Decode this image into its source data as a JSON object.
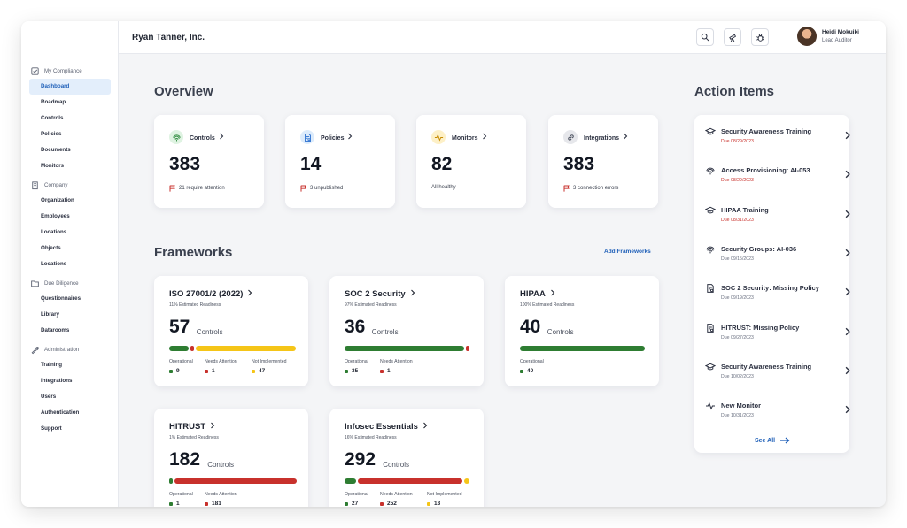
{
  "header": {
    "company": "Ryan Tanner, Inc.",
    "user": {
      "name": "Heidi Mokuiki",
      "role": "Lead Auditor"
    }
  },
  "sidebar": {
    "sections": [
      {
        "label": "My Compliance",
        "icon": "checkbox-icon",
        "items": [
          "Dashboard",
          "Roadmap",
          "Controls",
          "Policies",
          "Documents",
          "Monitors"
        ]
      },
      {
        "label": "Company",
        "icon": "building-icon",
        "items": [
          "Organization",
          "Employees",
          "Locations",
          "Objects",
          "Locations"
        ]
      },
      {
        "label": "Due Diligence",
        "icon": "folder-icon",
        "items": [
          "Questionnaires",
          "Library",
          "Datarooms"
        ]
      },
      {
        "label": "Administration",
        "icon": "wrench-icon",
        "items": [
          "Training",
          "Integrations",
          "Users",
          "Authentication",
          "Support"
        ]
      }
    ],
    "active": "Dashboard"
  },
  "overview": {
    "title": "Overview",
    "cards": [
      {
        "title": "Controls",
        "count": "383",
        "sub": "21 require attention",
        "icon": "fingerprint-icon",
        "icon_bg": "#dff3e2",
        "icon_color": "#2e8b3e",
        "flag": true
      },
      {
        "title": "Policies",
        "count": "14",
        "sub": "3 unpublished",
        "icon": "policy-icon",
        "icon_bg": "#dcebfb",
        "icon_color": "#2a6fcf",
        "flag": true
      },
      {
        "title": "Monitors",
        "count": "82",
        "sub": "All healthy",
        "icon": "pulse-icon",
        "icon_bg": "#fdf0c7",
        "icon_color": "#c78a00",
        "flag": false
      },
      {
        "title": "Integrations",
        "count": "383",
        "sub": "3 connection errors",
        "icon": "link-icon",
        "icon_bg": "#e6e7eb",
        "icon_color": "#4a505e",
        "flag": true
      }
    ]
  },
  "frameworks": {
    "title": "Frameworks",
    "add_label": "Add Frameworks",
    "controls_word": "Controls",
    "items": [
      {
        "name": "ISO 27001/2 (2022)",
        "readiness": "11% Estimated Readiness",
        "count": "57",
        "operational": 9,
        "needs_attention": 1,
        "not_implemented": 47
      },
      {
        "name": "SOC 2 Security",
        "readiness": "97% Estimated Readiness",
        "count": "36",
        "operational": 35,
        "needs_attention": 1,
        "not_implemented": null
      },
      {
        "name": "HIPAA",
        "readiness": "100% Estimated Readiness",
        "count": "40",
        "operational": 40,
        "needs_attention": null,
        "not_implemented": null
      },
      {
        "name": "HITRUST",
        "readiness": "1% Estimated Readiness",
        "count": "182",
        "operational": 1,
        "needs_attention": 181,
        "not_implemented": null
      },
      {
        "name": "Infosec Essentials",
        "readiness": "16% Estimated Readiness",
        "count": "292",
        "operational": 27,
        "needs_attention": 252,
        "not_implemented": 13
      }
    ],
    "legend": {
      "operational": "Operational",
      "needs_attention": "Needs Attention",
      "not_implemented": "Not Implemented"
    },
    "colors": {
      "operational": "#2e7d32",
      "needs_attention": "#c8312c",
      "not_implemented": "#f5c518"
    }
  },
  "action_items": {
    "title": "Action Items",
    "see_all": "See All",
    "items": [
      {
        "title": "Security Awareness Training",
        "due": "Due 08/29/2023",
        "overdue": true,
        "icon": "graduation-cap-icon"
      },
      {
        "title": "Access Provisioning: AI-053",
        "due": "Due 08/29/2023",
        "overdue": true,
        "icon": "fingerprint-icon"
      },
      {
        "title": "HIPAA Training",
        "due": "Due 08/31/2023",
        "overdue": true,
        "icon": "graduation-cap-icon"
      },
      {
        "title": "Security Groups: AI-036",
        "due": "Due 09/15/2023",
        "overdue": false,
        "icon": "fingerprint-icon"
      },
      {
        "title": "SOC 2 Security: Missing Policy",
        "due": "Due 09/19/2023",
        "overdue": false,
        "icon": "policy-icon"
      },
      {
        "title": "HITRUST: Missing Policy",
        "due": "Due 09/27/2023",
        "overdue": false,
        "icon": "policy-icon"
      },
      {
        "title": "Security Awareness Training",
        "due": "Due 10/02/2023",
        "overdue": false,
        "icon": "graduation-cap-icon"
      },
      {
        "title": "New Monitor",
        "due": "Due 10/31/2023",
        "overdue": false,
        "icon": "pulse-icon"
      }
    ]
  }
}
